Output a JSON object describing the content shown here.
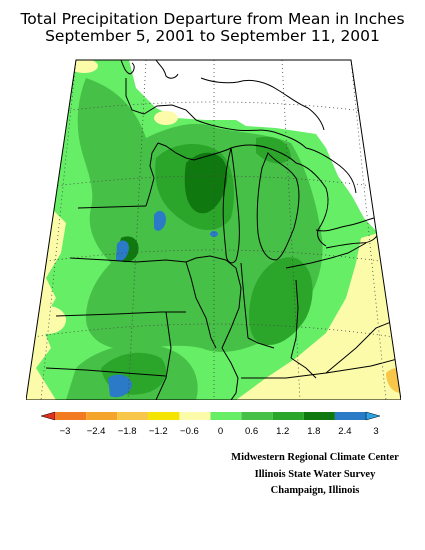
{
  "title_line1": "Total Precipitation Departure from Mean in Inches",
  "title_line2": "September 5, 2001 to September 11, 2001",
  "legend": {
    "labels": [
      "−3",
      "−2.4",
      "−1.8",
      "−1.2",
      "−0.6",
      "0",
      "0.6",
      "1.2",
      "1.8",
      "2.4",
      "3"
    ],
    "colors": [
      "#e03020",
      "#f27a22",
      "#f6a52c",
      "#f8c74a",
      "#f5e300",
      "#fbfbaa",
      "#66ee66",
      "#46c046",
      "#2ba62b",
      "#0f780f",
      "#2a7ac8",
      "#29a3e6"
    ]
  },
  "credits": {
    "line1": "Midwestern Regional Climate Center",
    "line2": "Illinois State Water Survey",
    "line3": "Champaign, Illinois"
  },
  "colors": {
    "light_yellow": "#fbfbaa",
    "light_green": "#66ee66",
    "medium_green": "#46c046",
    "dark_green": "#1a8a1a",
    "blue": "#2a7ac8"
  }
}
